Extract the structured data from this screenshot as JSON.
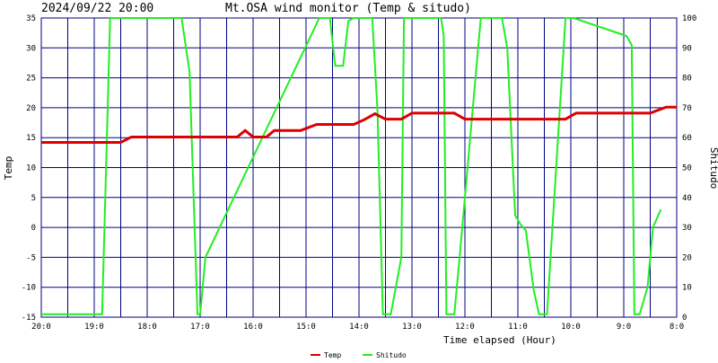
{
  "header": {
    "timestamp": "2024/09/22 20:00",
    "title": "Mt.OSA wind monitor (Temp & situdo)"
  },
  "chart_data": {
    "type": "line",
    "title": "Mt.OSA wind monitor (Temp & situdo)",
    "xlabel": "Time elapsed (Hour)",
    "ylabel_left": "Temp",
    "ylabel_right": "Shitudo",
    "xlim_hours_ago": [
      20,
      8
    ],
    "x_tick_labels": [
      "20:0",
      "19:0",
      "18:0",
      "17:0",
      "16:0",
      "15:0",
      "14:0",
      "13:0",
      "12:0",
      "11:0",
      "10:0",
      "9:0",
      "8:0"
    ],
    "ylim_left": [
      -15,
      35
    ],
    "y_ticks_left": [
      "-15",
      "-10",
      "-5",
      "0",
      "5",
      "10",
      "15",
      "20",
      "25",
      "30",
      "35"
    ],
    "ylim_right": [
      0,
      100
    ],
    "y_ticks_right": [
      "0",
      "10",
      "20",
      "30",
      "40",
      "50",
      "60",
      "70",
      "80",
      "90",
      "100"
    ],
    "grid": true,
    "legend_position": "bottom",
    "colors": {
      "temp": "#dd0000",
      "humidity": "#22ee22",
      "grid": "#000080"
    },
    "series": [
      {
        "name": "Temp",
        "axis": "left",
        "x_hours_ago": [
          20.0,
          18.5,
          18.3,
          16.3,
          16.15,
          16.0,
          15.75,
          15.6,
          15.45,
          15.1,
          14.8,
          14.55,
          14.1,
          13.9,
          13.7,
          13.5,
          13.2,
          13.0,
          12.2,
          12.0,
          11.1,
          10.3,
          10.1,
          9.9,
          8.5,
          8.2,
          8.0
        ],
        "values": [
          14.2,
          14.2,
          15.1,
          15.1,
          16.2,
          15.1,
          15.1,
          16.2,
          16.2,
          16.2,
          17.2,
          17.2,
          17.2,
          18.0,
          19.0,
          18.1,
          18.1,
          19.1,
          19.1,
          18.1,
          18.1,
          18.1,
          18.1,
          19.1,
          19.1,
          20.1,
          20.1
        ]
      },
      {
        "name": "Shitudo",
        "axis": "right",
        "x_hours_ago": [
          20.0,
          18.85,
          18.7,
          17.35,
          17.2,
          17.05,
          17.0,
          16.9,
          14.75,
          14.55,
          14.45,
          14.3,
          14.2,
          14.1,
          13.75,
          13.65,
          13.55,
          13.4,
          13.2,
          13.15,
          13.1,
          13.0,
          12.85,
          12.7,
          12.5,
          12.45,
          12.4,
          12.35,
          12.3,
          12.25,
          12.2,
          12.1,
          11.7,
          11.6,
          11.45,
          11.35,
          11.3,
          11.2,
          11.05,
          10.95,
          10.85,
          10.7,
          10.6,
          10.45,
          10.1,
          9.95,
          8.95,
          8.85,
          8.8,
          8.7,
          8.55,
          8.45,
          8.35,
          8.3
        ],
        "values": [
          1,
          1,
          100,
          100,
          82,
          1,
          1,
          20,
          100,
          100,
          84,
          84,
          99,
          100,
          100,
          69,
          1,
          1,
          20,
          100,
          100,
          100,
          100,
          100,
          100,
          100,
          94,
          1,
          1,
          1,
          1,
          20,
          100,
          100,
          100,
          100,
          100,
          90,
          34,
          31,
          29,
          9,
          1,
          1,
          100,
          100,
          94,
          91,
          1,
          1,
          10,
          30,
          34,
          36
        ]
      }
    ]
  },
  "legend": [
    {
      "label": "Temp",
      "color": "#dd0000"
    },
    {
      "label": "Shitudo",
      "color": "#22ee22"
    }
  ]
}
